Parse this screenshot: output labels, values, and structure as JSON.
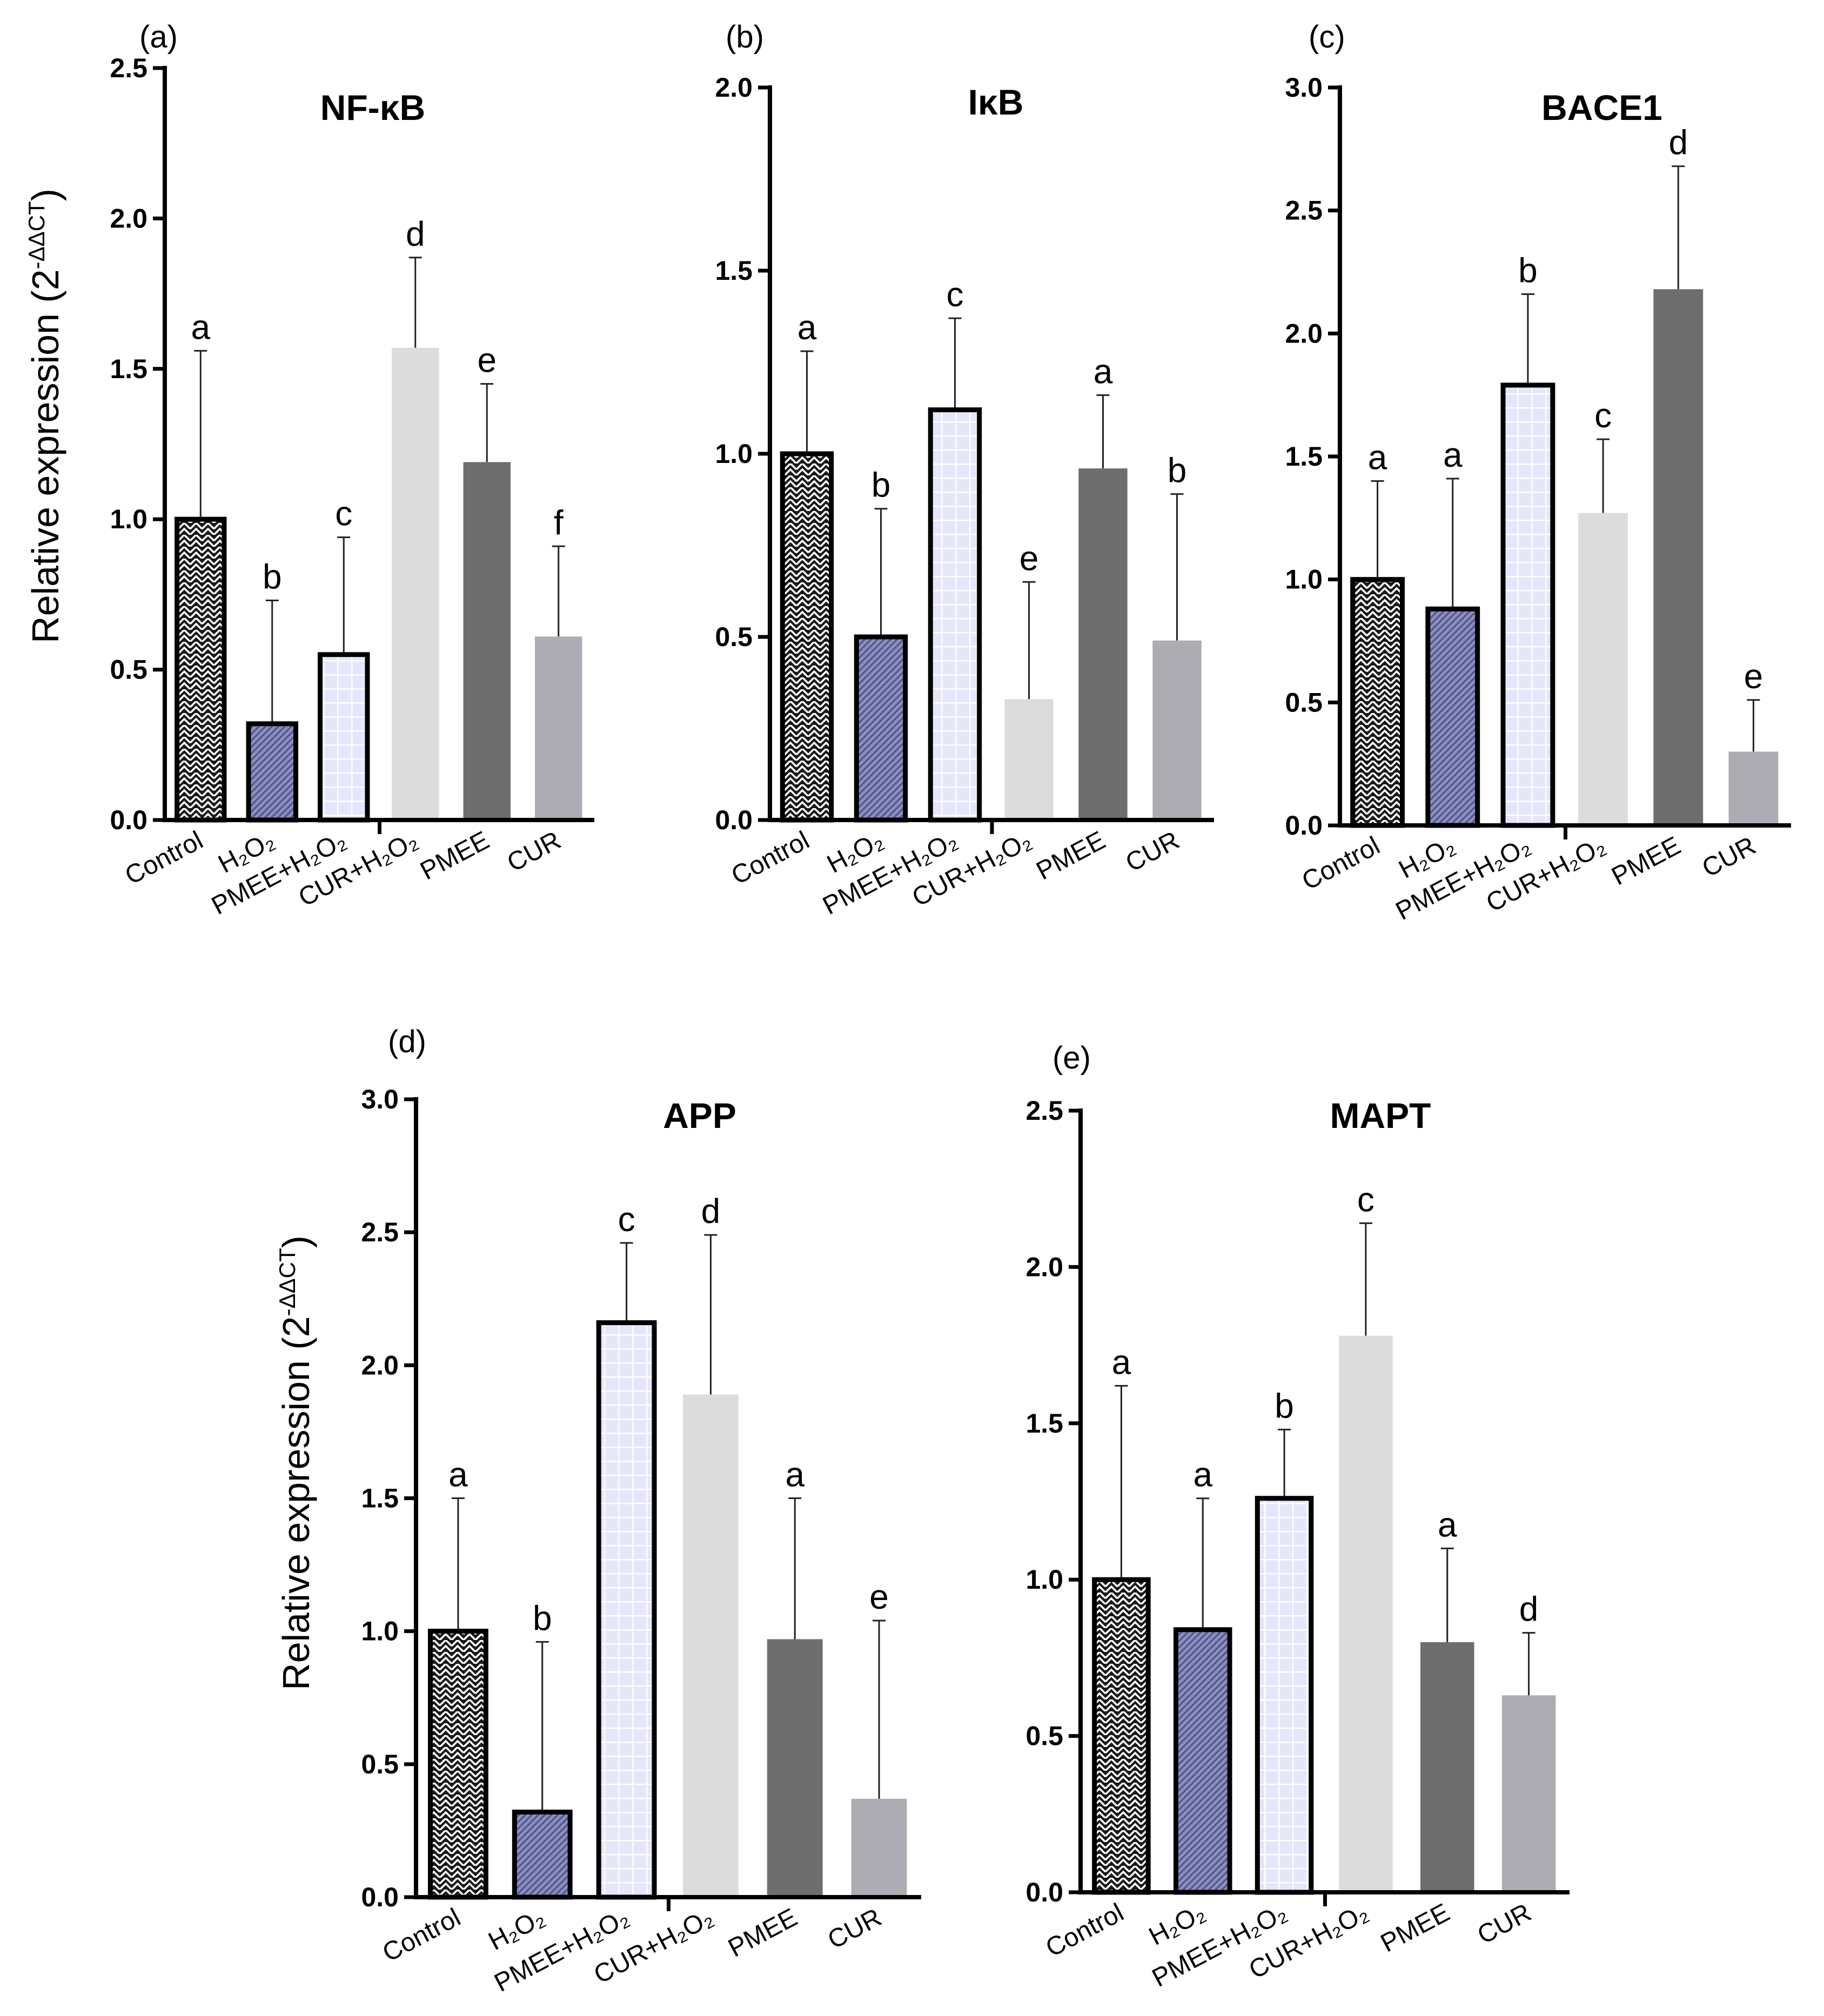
{
  "figure": {
    "ylabel_main": "Relative expression (2",
    "ylabel_sup": "-ΔΔCT",
    "ylabel_close": ")"
  },
  "colors": {
    "control": "#1a1a1a",
    "h2o2": "#8a8fbf",
    "pmee_h2o2": "#e6e6fb",
    "cur_h2o2": "#dcdcdc",
    "pmee": "#6e6e6e",
    "cur": "#acacb2"
  },
  "chart_data": [
    {
      "panel": "(a)",
      "type": "bar",
      "title": "NF-κB",
      "ylim": [
        0,
        2.5
      ],
      "yticks": [
        "0.0",
        "0.5",
        "1.0",
        "1.5",
        "2.0",
        "2.5"
      ],
      "categories": [
        "Control",
        "H₂O₂",
        "PMEE+H₂O₂",
        "CUR+H₂O₂",
        "PMEE",
        "CUR"
      ],
      "values": [
        1.0,
        0.32,
        0.55,
        1.57,
        1.19,
        0.61
      ],
      "errors": [
        0.56,
        0.41,
        0.39,
        0.3,
        0.26,
        0.3
      ],
      "letters": [
        "a",
        "b",
        "c",
        "d",
        "e",
        "f"
      ]
    },
    {
      "panel": "(b)",
      "type": "bar",
      "title": "IκB",
      "ylim": [
        0,
        2.0
      ],
      "yticks": [
        "0.0",
        "0.5",
        "1.0",
        "1.5",
        "2.0"
      ],
      "categories": [
        "Control",
        "H₂O₂",
        "PMEE+H₂O₂",
        "CUR+H₂O₂",
        "PMEE",
        "CUR"
      ],
      "values": [
        1.0,
        0.5,
        1.12,
        0.33,
        0.96,
        0.49
      ],
      "errors": [
        0.28,
        0.35,
        0.25,
        0.32,
        0.2,
        0.4
      ],
      "letters": [
        "a",
        "b",
        "c",
        "e",
        "a",
        "b"
      ]
    },
    {
      "panel": "(c)",
      "type": "bar",
      "title": "BACE1",
      "ylim": [
        0,
        3.0
      ],
      "yticks": [
        "0.0",
        "0.5",
        "1.0",
        "1.5",
        "2.0",
        "2.5",
        "3.0"
      ],
      "categories": [
        "Control",
        "H₂O₂",
        "PMEE+H₂O₂",
        "CUR+H₂O₂",
        "PMEE",
        "CUR"
      ],
      "values": [
        1.0,
        0.88,
        1.79,
        1.27,
        2.18,
        0.3
      ],
      "errors": [
        0.4,
        0.53,
        0.37,
        0.3,
        0.5,
        0.21
      ],
      "letters": [
        "a",
        "a",
        "b",
        "c",
        "d",
        "e"
      ]
    },
    {
      "panel": "(d)",
      "type": "bar",
      "title": "APP",
      "ylim": [
        0,
        3.0
      ],
      "yticks": [
        "0.0",
        "0.5",
        "1.0",
        "1.5",
        "2.0",
        "2.5",
        "3.0"
      ],
      "categories": [
        "Control",
        "H₂O₂",
        "PMEE+H₂O₂",
        "CUR+H₂O₂",
        "PMEE",
        "CUR"
      ],
      "values": [
        1.0,
        0.32,
        2.16,
        1.89,
        0.97,
        0.37
      ],
      "errors": [
        0.5,
        0.64,
        0.3,
        0.6,
        0.53,
        0.67
      ],
      "letters": [
        "a",
        "b",
        "c",
        "d",
        "a",
        "e"
      ]
    },
    {
      "panel": "(e)",
      "type": "bar",
      "title": "MAPT",
      "ylim": [
        0,
        2.5
      ],
      "yticks": [
        "0.0",
        "0.5",
        "1.0",
        "1.5",
        "2.0",
        "2.5"
      ],
      "categories": [
        "Control",
        "H₂O₂",
        "PMEE+H₂O₂",
        "CUR+H₂O₂",
        "PMEE",
        "CUR"
      ],
      "values": [
        1.0,
        0.84,
        1.26,
        1.78,
        0.8,
        0.63
      ],
      "errors": [
        0.62,
        0.42,
        0.22,
        0.36,
        0.3,
        0.2
      ],
      "letters": [
        "a",
        "a",
        "b",
        "c",
        "a",
        "d"
      ]
    }
  ]
}
